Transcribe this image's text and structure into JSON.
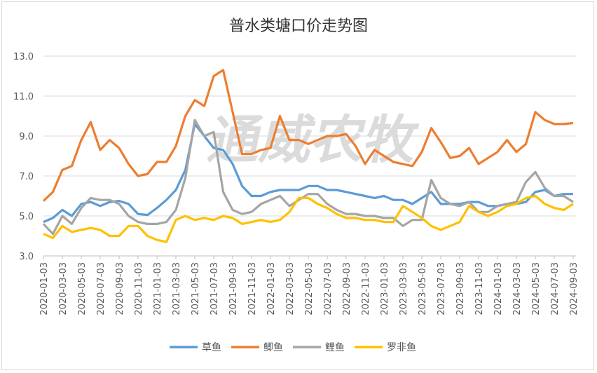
{
  "chart_data": {
    "type": "line",
    "title": "普水类塘口价走势图",
    "watermark": "通威农牧",
    "xlabel": "",
    "ylabel": "",
    "ylim": [
      3.0,
      13.0
    ],
    "yticks": [
      "3.0",
      "5.0",
      "7.0",
      "9.0",
      "11.0",
      "13.0"
    ],
    "grid": true,
    "legend_position": "bottom",
    "xtick_labels": [
      "2020-01-03",
      "2020-03-03",
      "2020-05-03",
      "2020-07-03",
      "2020-09-03",
      "2020-11-03",
      "2021-01-03",
      "2021-03-03",
      "2021-05-03",
      "2021-07-03",
      "2021-09-03",
      "2021-11-03",
      "2022-01-03",
      "2022-03-03",
      "2022-05-03",
      "2022-07-03",
      "2022-09-03",
      "2022-11-03",
      "2023-01-03",
      "2023-03-03",
      "2023-05-03",
      "2023-07-03",
      "2023-09-03",
      "2023-11-03",
      "2024-01-03",
      "2024-03-03",
      "2024-05-03",
      "2024-07-03",
      "2024-09-03"
    ],
    "x": [
      "2020-01",
      "2020-02",
      "2020-03",
      "2020-04",
      "2020-05",
      "2020-06",
      "2020-07",
      "2020-08",
      "2020-09",
      "2020-10",
      "2020-11",
      "2020-12",
      "2021-01",
      "2021-02",
      "2021-03",
      "2021-04",
      "2021-05",
      "2021-06",
      "2021-07",
      "2021-08",
      "2021-09",
      "2021-10",
      "2021-11",
      "2021-12",
      "2022-01",
      "2022-02",
      "2022-03",
      "2022-04",
      "2022-05",
      "2022-06",
      "2022-07",
      "2022-08",
      "2022-09",
      "2022-10",
      "2022-11",
      "2022-12",
      "2023-01",
      "2023-02",
      "2023-03",
      "2023-04",
      "2023-05",
      "2023-06",
      "2023-07",
      "2023-08",
      "2023-09",
      "2023-10",
      "2023-11",
      "2023-12",
      "2024-01",
      "2024-02",
      "2024-03",
      "2024-04",
      "2024-05",
      "2024-06",
      "2024-07",
      "2024-08",
      "2024-09"
    ],
    "series": [
      {
        "name": "草鱼",
        "color": "#5b9bd5",
        "values": [
          4.7,
          4.9,
          5.3,
          5.0,
          5.6,
          5.7,
          5.5,
          5.7,
          5.75,
          5.6,
          5.1,
          5.05,
          5.4,
          5.8,
          6.3,
          7.3,
          9.6,
          9.0,
          8.4,
          8.3,
          7.6,
          6.5,
          6.0,
          6.0,
          6.2,
          6.3,
          6.3,
          6.3,
          6.5,
          6.5,
          6.3,
          6.3,
          6.2,
          6.1,
          6.0,
          5.9,
          6.0,
          5.8,
          5.8,
          5.6,
          5.9,
          6.2,
          5.6,
          5.6,
          5.6,
          5.7,
          5.7,
          5.5,
          5.5,
          5.6,
          5.6,
          5.7,
          6.2,
          6.3,
          6.0,
          6.1,
          6.1
        ]
      },
      {
        "name": "鲫鱼",
        "color": "#ed7d31",
        "values": [
          5.75,
          6.2,
          7.3,
          7.5,
          8.8,
          9.7,
          8.3,
          8.8,
          8.4,
          7.6,
          7.0,
          7.1,
          7.7,
          7.7,
          8.5,
          10.0,
          10.8,
          10.5,
          12.0,
          12.3,
          10.2,
          8.1,
          8.1,
          8.3,
          8.4,
          10.0,
          8.8,
          8.8,
          8.6,
          8.8,
          9.0,
          9.0,
          9.1,
          8.5,
          7.6,
          8.3,
          8.0,
          7.7,
          7.6,
          7.5,
          8.2,
          9.4,
          8.7,
          7.9,
          8.0,
          8.4,
          7.6,
          7.9,
          8.2,
          8.8,
          8.2,
          8.6,
          10.2,
          9.8,
          9.6,
          9.6,
          9.65
        ]
      },
      {
        "name": "鲤鱼",
        "color": "#a5a5a5",
        "values": [
          4.6,
          4.1,
          5.0,
          4.6,
          5.4,
          5.9,
          5.8,
          5.8,
          5.6,
          5.0,
          4.7,
          4.6,
          4.6,
          4.7,
          5.3,
          6.9,
          9.8,
          9.0,
          9.2,
          6.2,
          5.3,
          5.1,
          5.2,
          5.6,
          5.8,
          6.0,
          5.5,
          5.8,
          6.1,
          6.1,
          5.6,
          5.3,
          5.1,
          5.1,
          5.0,
          5.0,
          4.9,
          4.9,
          4.5,
          4.8,
          4.8,
          6.8,
          5.9,
          5.6,
          5.5,
          5.7,
          5.2,
          5.2,
          5.5,
          5.6,
          5.7,
          6.7,
          7.2,
          6.4,
          6.0,
          6.0,
          5.7
        ]
      },
      {
        "name": "罗非鱼",
        "color": "#ffc000",
        "values": [
          4.1,
          3.9,
          4.5,
          4.2,
          4.3,
          4.4,
          4.3,
          4.0,
          4.0,
          4.5,
          4.5,
          4.0,
          3.8,
          3.7,
          4.8,
          5.0,
          4.8,
          4.9,
          4.8,
          5.0,
          4.9,
          4.6,
          4.7,
          4.8,
          4.7,
          4.8,
          5.2,
          5.9,
          5.9,
          5.6,
          5.4,
          5.1,
          4.9,
          4.9,
          4.8,
          4.8,
          4.7,
          4.7,
          5.5,
          5.2,
          4.9,
          4.5,
          4.3,
          4.5,
          4.7,
          5.5,
          5.2,
          5.0,
          5.2,
          5.5,
          5.6,
          5.9,
          6.0,
          5.6,
          5.4,
          5.3,
          5.6
        ]
      }
    ]
  }
}
